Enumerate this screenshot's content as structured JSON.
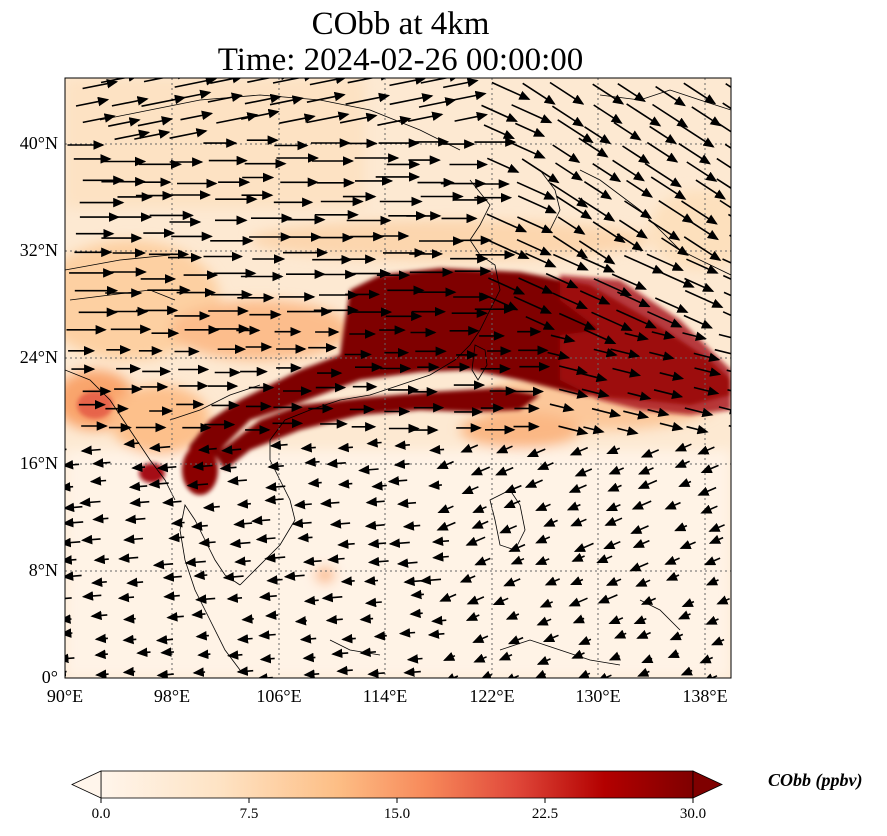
{
  "title": {
    "line1": "CObb at 4km",
    "line2": "Time: 2024-02-26 00:00:00"
  },
  "map": {
    "lon_range": [
      90,
      140
    ],
    "lat_range": [
      0,
      45
    ],
    "lon_ticks": [
      "90°E",
      "98°E",
      "106°E",
      "114°E",
      "122°E",
      "130°E",
      "138°E"
    ],
    "lat_ticks": [
      "0°",
      "8°N",
      "16°N",
      "24°N",
      "32°N",
      "40°N"
    ],
    "gridlines": true,
    "field": "CObb concentration (filled), wind vectors (arrows)"
  },
  "colorbar": {
    "label": "CObb (ppbv)",
    "ticks": [
      "0.0",
      "7.5",
      "15.0",
      "22.5",
      "30.0"
    ],
    "range": [
      0,
      30
    ],
    "extend": "both",
    "colormap": [
      "#fff5eb",
      "#fdd0a2",
      "#fdae6b",
      "#f16913",
      "#d94801",
      "#a50f15",
      "#7f0000"
    ]
  }
}
